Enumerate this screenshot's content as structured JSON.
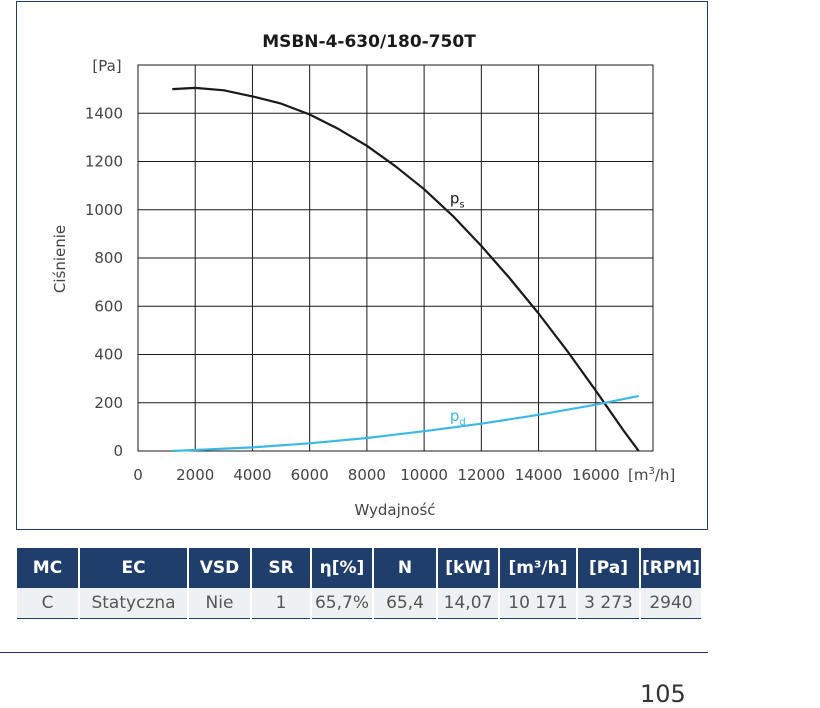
{
  "chart_data": {
    "type": "line",
    "title": "MSBN-4-630/180-750T",
    "xlabel": "Wydajność",
    "ylabel": "Ciśnienie",
    "y_unit": "[Pa]",
    "x_unit_prefix": "[m",
    "x_unit_sup": "3",
    "x_unit_suffix": "/h]",
    "xlim": [
      0,
      18000
    ],
    "ylim": [
      0,
      1600
    ],
    "x_ticks": [
      0,
      2000,
      4000,
      6000,
      8000,
      10000,
      12000,
      14000,
      16000
    ],
    "y_ticks": [
      0,
      200,
      400,
      600,
      800,
      1000,
      1200,
      1400
    ],
    "grid": true,
    "series": [
      {
        "name": "ps",
        "label_main": "p",
        "label_sub": "s",
        "color": "#1a1a1a",
        "x": [
          1200,
          2000,
          3000,
          4000,
          5000,
          6000,
          7000,
          8000,
          9000,
          10000,
          11000,
          12000,
          13000,
          14000,
          15000,
          16000,
          17000,
          17500
        ],
        "y": [
          1500,
          1505,
          1495,
          1470,
          1440,
          1395,
          1335,
          1265,
          1180,
          1085,
          975,
          850,
          715,
          570,
          415,
          250,
          80,
          0
        ]
      },
      {
        "name": "pd",
        "label_main": "p",
        "label_sub": "d",
        "color": "#3cb8e6",
        "x": [
          1200,
          2000,
          4000,
          6000,
          8000,
          10000,
          12000,
          14000,
          16000,
          17500
        ],
        "y": [
          0,
          4,
          15,
          32,
          54,
          82,
          113,
          150,
          192,
          228
        ]
      }
    ]
  },
  "table": {
    "headers": [
      "MC",
      "EC",
      "VSD",
      "SR",
      "η[%]",
      "N",
      "[kW]",
      "[m³/h]",
      "[Pa]",
      "[RPM]"
    ],
    "row": [
      "C",
      "Statyczna",
      "Nie",
      "1",
      "65,7%",
      "65,4",
      "14,07",
      "10 171",
      "3 273",
      "2940"
    ]
  },
  "page_number": "105",
  "colors": {
    "frame": "#1f3e6b",
    "header_bg": "#1f3e6b",
    "row_bg": "#eef1f4",
    "grid": "#1a1a1a",
    "ps": "#1a1a1a",
    "pd": "#3cb8e6"
  }
}
